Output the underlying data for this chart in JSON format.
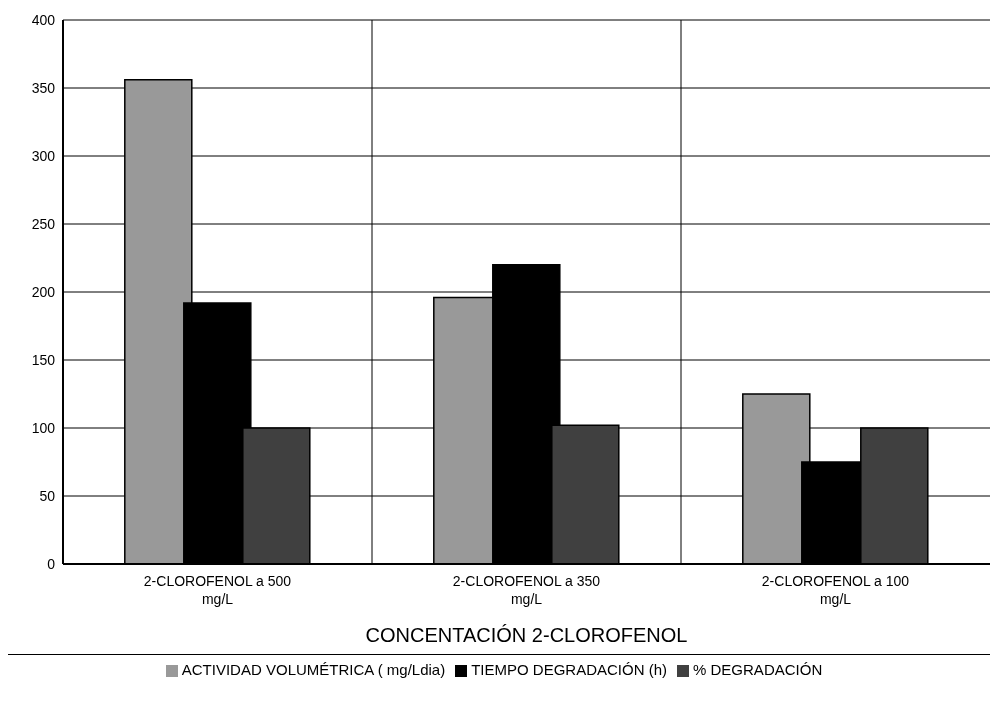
{
  "chart_data": {
    "type": "bar",
    "xlabel": "CONCENTACIÓN 2-CLOROFENOL",
    "categories": [
      "2-CLOROFENOL a 500 mg/L",
      "2-CLOROFENOL a 350 mg/L",
      "2-CLOROFENOL a 100 mg/L"
    ],
    "series": [
      {
        "name": "ACTIVIDAD VOLUMÉTRICA ( mg/Ldia)",
        "color": "#999999",
        "values": [
          356,
          196,
          125
        ]
      },
      {
        "name": "TIEMPO DEGRADACIÓN (h)",
        "color": "#000000",
        "values": [
          192,
          220,
          75
        ]
      },
      {
        "name": "% DEGRADACIÓN",
        "color": "#404040",
        "values": [
          100,
          102,
          100
        ]
      }
    ],
    "ylim": [
      0,
      400
    ],
    "yticks": [
      0,
      50,
      100,
      150,
      200,
      250,
      300,
      350,
      400
    ],
    "grid": true,
    "legend": "bottom"
  }
}
